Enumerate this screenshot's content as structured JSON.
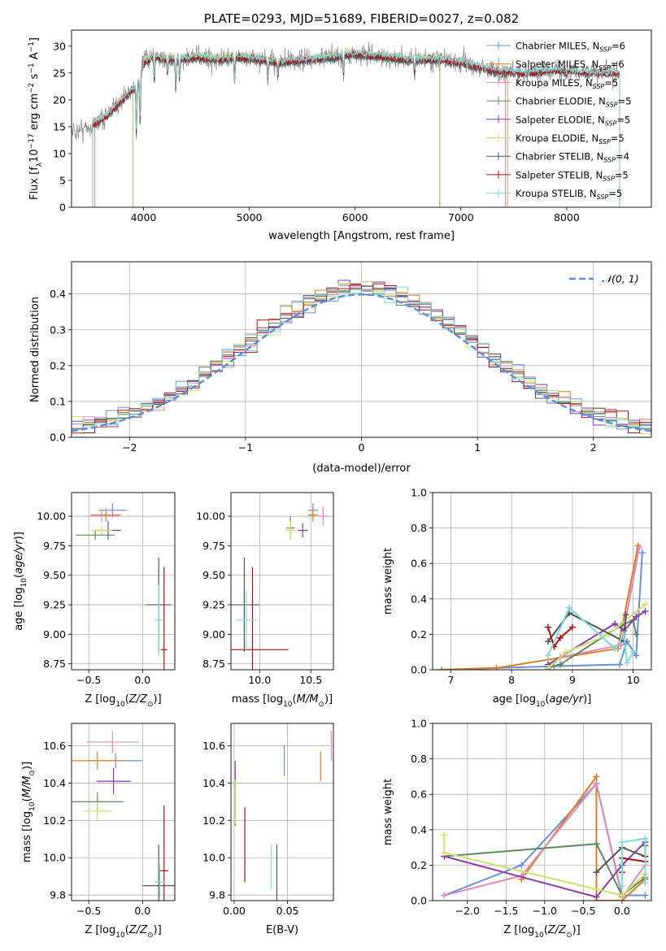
{
  "chart_data": [
    {
      "id": "spectrum",
      "type": "line",
      "title": "PLATE=0293, MJD=51689, FIBERID=0027, z=0.082",
      "xlabel": "wavelength [Angstrom, rest frame]",
      "ylabel": "Flux [f_λ 10^-17 erg cm^-2 s^-1 A^-1]",
      "xlim": [
        3320,
        8800
      ],
      "ylim": [
        0,
        33
      ],
      "xticks": [
        4000,
        5000,
        6000,
        7000,
        8000
      ],
      "yticks": [
        0,
        5,
        10,
        15,
        20,
        25,
        30
      ],
      "grid": false,
      "legend_position": "top-right",
      "series": [
        {
          "name": "Chabrier MILES, N_SSP=6",
          "color": "#6a8fd9",
          "range": [
            3540,
            7420
          ]
        },
        {
          "name": "Salpeter MILES, N_SSP=6",
          "color": "#e07b25",
          "range": [
            3520,
            7440
          ]
        },
        {
          "name": "Kroupa MILES, N_SSP=5",
          "color": "#e089bd",
          "range": [
            3540,
            7420
          ]
        },
        {
          "name": "Chabrier ELODIE, N_SSP=5",
          "color": "#5b8a5e",
          "range": [
            3900,
            6800
          ]
        },
        {
          "name": "Salpeter ELODIE, N_SSP=5",
          "color": "#8e3aa8",
          "range": [
            3900,
            6800
          ]
        },
        {
          "name": "Kroupa ELODIE, N_SSP=5",
          "color": "#c8e36a",
          "range": [
            3900,
            6800
          ]
        },
        {
          "name": "Chabrier STELIB, N_SSP=4",
          "color": "#555555",
          "range": [
            3520,
            8500
          ]
        },
        {
          "name": "Salpeter STELIB, N_SSP=5",
          "color": "#b01010",
          "range": [
            3520,
            8500
          ]
        },
        {
          "name": "Kroupa STELIB, N_SSP=5",
          "color": "#7fd8d8",
          "range": [
            3520,
            8500
          ]
        }
      ],
      "observed_color": "#888888",
      "shape": [
        [
          3320,
          14
        ],
        [
          3500,
          15
        ],
        [
          3650,
          17
        ],
        [
          3800,
          20
        ],
        [
          3950,
          23
        ],
        [
          4000,
          27
        ],
        [
          4100,
          28
        ],
        [
          4300,
          27.5
        ],
        [
          4500,
          28
        ],
        [
          4700,
          27.5
        ],
        [
          4900,
          28
        ],
        [
          5100,
          27.5
        ],
        [
          5300,
          27
        ],
        [
          5600,
          27.5
        ],
        [
          5800,
          28
        ],
        [
          6000,
          28.5
        ],
        [
          6300,
          28
        ],
        [
          6500,
          27.5
        ],
        [
          6800,
          27.5
        ],
        [
          7000,
          27
        ],
        [
          7300,
          25.5
        ],
        [
          7600,
          25
        ],
        [
          7900,
          25.5
        ],
        [
          8200,
          25
        ],
        [
          8500,
          25
        ]
      ],
      "absorption_lines": [
        [
          3933,
          10
        ],
        [
          3968,
          9
        ],
        [
          4102,
          5
        ],
        [
          4227,
          3
        ],
        [
          4305,
          6
        ],
        [
          4340,
          4
        ],
        [
          4861,
          5
        ],
        [
          5175,
          4
        ],
        [
          5270,
          3
        ],
        [
          5890,
          4
        ],
        [
          6563,
          3
        ]
      ],
      "drop_edges": [
        3520,
        3900,
        6800,
        7430
      ]
    },
    {
      "id": "residuals",
      "type": "line",
      "xlabel": "(data-model)/error",
      "ylabel": "Normed distribution",
      "xlim": [
        -2.5,
        2.5
      ],
      "ylim": [
        0,
        0.49
      ],
      "xticks": [
        -2,
        -1,
        0,
        1,
        2
      ],
      "yticks": [
        0.0,
        0.1,
        0.2,
        0.3,
        0.4
      ],
      "grid": true,
      "legend": [
        "𝒩(0, 1)"
      ],
      "legend_position": "top-right",
      "reference_color": "#5b8fd9",
      "bin_width": 0.1
    },
    {
      "id": "age_vs_Z",
      "type": "scatter",
      "xlabel": "Z [log10(Z/Z⊙)]",
      "ylabel": "age  [log10(age/yr)]",
      "xlim": [
        -0.66,
        0.3
      ],
      "ylim": [
        8.7,
        10.2
      ],
      "xticks": [
        -0.5,
        0.0
      ],
      "yticks": [
        8.75,
        9.0,
        9.25,
        9.5,
        9.75,
        10.0
      ],
      "grid": true,
      "points": [
        {
          "x": -0.28,
          "y": 10.05,
          "xerr": 0.13,
          "yerr": 0.06,
          "color": "#6a8fd9"
        },
        {
          "x": -0.34,
          "y": 10.01,
          "xerr": 0.14,
          "yerr": 0.06,
          "color": "#e07b25"
        },
        {
          "x": -0.38,
          "y": 10.0,
          "xerr": 0.16,
          "yerr": 0.05,
          "color": "#e089bd"
        },
        {
          "x": -0.44,
          "y": 9.84,
          "xerr": 0.18,
          "yerr": 0.04,
          "color": "#5b8a5e"
        },
        {
          "x": -0.32,
          "y": 9.88,
          "xerr": 0.12,
          "yerr": 0.08,
          "color": "#8e3aa8"
        },
        {
          "x": -0.38,
          "y": 9.88,
          "xerr": 0.1,
          "yerr": 0.04,
          "color": "#c8e36a"
        },
        {
          "x": 0.15,
          "y": 9.25,
          "xerr": 0.12,
          "yerr": 0.4,
          "color": "#555555"
        },
        {
          "x": 0.2,
          "y": 8.87,
          "xerr": 0.03,
          "yerr": 0.7,
          "color": "#b01010"
        },
        {
          "x": 0.15,
          "y": 9.12,
          "xerr": 0.04,
          "yerr": 0.3,
          "color": "#7fd8d8"
        }
      ]
    },
    {
      "id": "age_vs_mass",
      "type": "scatter",
      "xlabel": "mass [log10(M/M⊙)]",
      "ylabel": "",
      "xlim": [
        9.72,
        10.72
      ],
      "ylim": [
        8.7,
        10.2
      ],
      "xticks": [
        10.0,
        10.5
      ],
      "yticks": [
        8.75,
        9.0,
        9.25,
        9.5,
        9.75,
        10.0
      ],
      "grid": true,
      "points": [
        {
          "x": 10.52,
          "y": 10.05,
          "xerr": 0.05,
          "yerr": 0.06,
          "color": "#6a8fd9"
        },
        {
          "x": 10.52,
          "y": 10.01,
          "xerr": 0.05,
          "yerr": 0.06,
          "color": "#e07b25"
        },
        {
          "x": 10.62,
          "y": 10.0,
          "xerr": 0.05,
          "yerr": 0.08,
          "color": "#e089bd"
        },
        {
          "x": 10.3,
          "y": 9.9,
          "xerr": 0.04,
          "yerr": 0.1,
          "color": "#5b8a5e"
        },
        {
          "x": 10.42,
          "y": 9.88,
          "xerr": 0.05,
          "yerr": 0.06,
          "color": "#8e3aa8"
        },
        {
          "x": 10.3,
          "y": 9.88,
          "xerr": 0.05,
          "yerr": 0.08,
          "color": "#c8e36a"
        },
        {
          "x": 9.85,
          "y": 9.25,
          "xerr": 0.15,
          "yerr": 0.4,
          "color": "#555555"
        },
        {
          "x": 9.93,
          "y": 8.87,
          "xerr": 0.35,
          "yerr": 0.7,
          "color": "#b01010"
        },
        {
          "x": 9.87,
          "y": 9.12,
          "xerr": 0.1,
          "yerr": 0.25,
          "color": "#7fd8d8"
        }
      ]
    },
    {
      "id": "weight_vs_age",
      "type": "line",
      "xlabel": "age  [log10(age/yr)]",
      "ylabel": "mass weight",
      "xlim": [
        6.7,
        10.3
      ],
      "ylim": [
        0,
        1.0
      ],
      "xticks": [
        7,
        8,
        9,
        10
      ],
      "yticks": [
        0.0,
        0.2,
        0.4,
        0.6,
        0.8,
        1.0
      ],
      "grid": true,
      "series": [
        {
          "color": "#6a8fd9",
          "points": [
            [
              6.85,
              0.0
            ],
            [
              8.7,
              0.02
            ],
            [
              9.78,
              0.03
            ],
            [
              9.9,
              0.16
            ],
            [
              10.05,
              0.08
            ],
            [
              10.15,
              0.66
            ]
          ]
        },
        {
          "color": "#e07b25",
          "points": [
            [
              6.85,
              0.0
            ],
            [
              7.75,
              0.01
            ],
            [
              9.75,
              0.12
            ],
            [
              10.08,
              0.7
            ]
          ]
        },
        {
          "color": "#e089bd",
          "points": [
            [
              8.6,
              0.0
            ],
            [
              8.8,
              0.07
            ],
            [
              9.8,
              0.14
            ],
            [
              10.1,
              0.69
            ]
          ]
        },
        {
          "color": "#5b8a5e",
          "points": [
            [
              8.6,
              0.01
            ],
            [
              8.8,
              0.03
            ],
            [
              9.8,
              0.25
            ],
            [
              10.0,
              0.28
            ],
            [
              10.05,
              0.2
            ]
          ]
        },
        {
          "color": "#8e3aa8",
          "points": [
            [
              8.6,
              0.03
            ],
            [
              9.7,
              0.26
            ],
            [
              9.85,
              0.22
            ],
            [
              10.05,
              0.3
            ],
            [
              10.2,
              0.33
            ]
          ]
        },
        {
          "color": "#c8e36a",
          "points": [
            [
              8.6,
              0.01
            ],
            [
              8.9,
              0.1
            ],
            [
              9.6,
              0.2
            ],
            [
              10.2,
              0.37
            ]
          ]
        },
        {
          "color": "#555555",
          "points": [
            [
              8.6,
              0.16
            ],
            [
              8.95,
              0.32
            ],
            [
              9.85,
              0.16
            ],
            [
              9.88,
              0.31
            ]
          ]
        },
        {
          "color": "#b01010",
          "points": [
            [
              8.6,
              0.24
            ],
            [
              8.7,
              0.13
            ],
            [
              8.8,
              0.18
            ],
            [
              9.0,
              0.24
            ]
          ]
        },
        {
          "color": "#7fd8d8",
          "points": [
            [
              8.6,
              0.08
            ],
            [
              8.95,
              0.35
            ],
            [
              9.7,
              0.12
            ],
            [
              9.85,
              0.2
            ],
            [
              9.9,
              0.04
            ],
            [
              10.0,
              0.1
            ]
          ]
        }
      ]
    },
    {
      "id": "mass_vs_Z",
      "type": "scatter",
      "xlabel": "Z [log10(Z/Z⊙)]",
      "ylabel": "mass [log10(M/M⊙)]",
      "xlim": [
        -0.66,
        0.3
      ],
      "ylim": [
        9.77,
        10.72
      ],
      "xticks": [
        -0.5,
        0.0
      ],
      "yticks": [
        9.8,
        10.0,
        10.2,
        10.4,
        10.6
      ],
      "grid": true,
      "points": [
        {
          "x": -0.25,
          "y": 10.52,
          "xerr": 0.25,
          "yerr": 0.04,
          "color": "#6a8fd9"
        },
        {
          "x": -0.42,
          "y": 10.52,
          "xerr": 0.25,
          "yerr": 0.05,
          "color": "#e07b25"
        },
        {
          "x": -0.28,
          "y": 10.62,
          "xerr": 0.24,
          "yerr": 0.06,
          "color": "#e089bd"
        },
        {
          "x": -0.42,
          "y": 10.3,
          "xerr": 0.24,
          "yerr": 0.05,
          "color": "#5b8a5e"
        },
        {
          "x": -0.27,
          "y": 10.41,
          "xerr": 0.16,
          "yerr": 0.07,
          "color": "#8e3aa8"
        },
        {
          "x": -0.42,
          "y": 10.25,
          "xerr": 0.13,
          "yerr": 0.05,
          "color": "#c8e36a"
        },
        {
          "x": 0.15,
          "y": 9.85,
          "xerr": 0.15,
          "yerr": 0.22,
          "color": "#555555"
        },
        {
          "x": 0.2,
          "y": 9.93,
          "xerr": 0.04,
          "yerr": 0.35,
          "color": "#b01010"
        },
        {
          "x": 0.16,
          "y": 9.87,
          "xerr": 0.05,
          "yerr": 0.09,
          "color": "#7fd8d8"
        }
      ]
    },
    {
      "id": "mass_vs_EBV",
      "type": "scatter",
      "xlabel": "E(B-V)",
      "ylabel": "",
      "xlim": [
        -0.003,
        0.093
      ],
      "ylim": [
        9.77,
        10.72
      ],
      "xticks": [
        0.0,
        0.05
      ],
      "yticks": [
        9.8,
        10.0,
        10.2,
        10.4,
        10.6
      ],
      "grid": true,
      "points": [
        {
          "x": 0.047,
          "y": 10.52,
          "yerr": 0.08,
          "color": "#6a8fd9"
        },
        {
          "x": 0.081,
          "y": 10.49,
          "yerr": 0.08,
          "color": "#e07b25"
        },
        {
          "x": 0.091,
          "y": 10.6,
          "yerr": 0.08,
          "color": "#e089bd"
        },
        {
          "x": 0.001,
          "y": 10.3,
          "yerr": 0.13,
          "color": "#5b8a5e"
        },
        {
          "x": 0.001,
          "y": 10.45,
          "yerr": 0.07,
          "color": "#8e3aa8"
        },
        {
          "x": 0.001,
          "y": 10.3,
          "yerr": 0.12,
          "color": "#c8e36a"
        },
        {
          "x": 0.04,
          "y": 9.88,
          "yerr": 0.19,
          "color": "#555555"
        },
        {
          "x": 0.01,
          "y": 10.07,
          "yerr": 0.2,
          "color": "#b01010"
        },
        {
          "x": 0.035,
          "y": 9.95,
          "yerr": 0.12,
          "color": "#7fd8d8"
        }
      ]
    },
    {
      "id": "weight_vs_Z",
      "type": "line",
      "xlabel": "Z [log10(Z/Z⊙)]",
      "ylabel": "mass weight",
      "xlim": [
        -2.45,
        0.38
      ],
      "ylim": [
        0,
        1.0
      ],
      "xticks": [
        -2.0,
        -1.5,
        -1.0,
        -0.5,
        0.0
      ],
      "yticks": [
        0.0,
        0.2,
        0.4,
        0.6,
        0.8,
        1.0
      ],
      "grid": true,
      "series": [
        {
          "color": "#6a8fd9",
          "points": [
            [
              -2.3,
              0.03
            ],
            [
              -1.3,
              0.2
            ],
            [
              -0.33,
              0.66
            ],
            [
              0.0,
              0.03
            ],
            [
              0.3,
              0.03
            ]
          ]
        },
        {
          "color": "#e07b25",
          "points": [
            [
              -1.3,
              0.12
            ],
            [
              -0.33,
              0.7
            ],
            [
              -0.33,
              0.0
            ],
            [
              0.0,
              0.0
            ],
            [
              0.3,
              0.12
            ]
          ]
        },
        {
          "color": "#e089bd",
          "points": [
            [
              -2.3,
              0.03
            ],
            [
              -1.3,
              0.14
            ],
            [
              -0.33,
              0.66
            ],
            [
              0.0,
              0.02
            ],
            [
              0.3,
              0.2
            ]
          ]
        },
        {
          "color": "#5b8a5e",
          "points": [
            [
              -2.3,
              0.25
            ],
            [
              -0.33,
              0.32
            ],
            [
              0.0,
              0.03
            ],
            [
              0.3,
              0.13
            ]
          ]
        },
        {
          "color": "#8e3aa8",
          "points": [
            [
              -2.3,
              0.25
            ],
            [
              -0.33,
              0.02
            ],
            [
              0.0,
              0.2
            ],
            [
              0.3,
              0.33
            ]
          ]
        },
        {
          "color": "#c8e36a",
          "points": [
            [
              -2.3,
              0.37
            ],
            [
              -2.3,
              0.27
            ],
            [
              0.0,
              0.03
            ],
            [
              0.3,
              0.15
            ]
          ]
        },
        {
          "color": "#555555",
          "points": [
            [
              -0.33,
              0.16
            ],
            [
              0.0,
              0.3
            ],
            [
              0.3,
              0.25
            ],
            [
              0.3,
              0.31
            ]
          ]
        },
        {
          "color": "#b01010",
          "points": [
            [
              0.0,
              0.16
            ],
            [
              0.0,
              0.24
            ],
            [
              0.3,
              0.22
            ],
            [
              0.3,
              0.25
            ]
          ]
        },
        {
          "color": "#7fd8d8",
          "points": [
            [
              0.0,
              0.08
            ],
            [
              0.0,
              0.33
            ],
            [
              0.3,
              0.35
            ],
            [
              0.3,
              0.1
            ]
          ]
        }
      ]
    }
  ]
}
